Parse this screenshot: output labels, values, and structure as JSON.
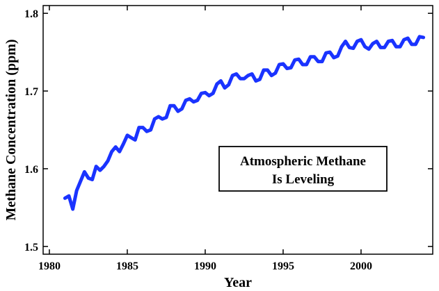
{
  "chart_data": {
    "type": "line",
    "title": "",
    "xlabel": "Year",
    "ylabel": "Methane Concentration (ppm)",
    "xlim": [
      1979.6,
      2004.6
    ],
    "ylim": [
      1.49,
      1.81
    ],
    "x_ticks": [
      1980,
      1985,
      1990,
      1995,
      2000
    ],
    "y_ticks": [
      1.5,
      1.6,
      1.7,
      1.8
    ],
    "x_tick_labels": [
      "1980",
      "1985",
      "1990",
      "1995",
      "2000"
    ],
    "y_tick_labels": [
      "1.5",
      "1.6",
      "1.7",
      "1.8"
    ],
    "grid": false,
    "line_color": "#1a33ff",
    "annotation": {
      "lines": [
        "Atmospheric Methane",
        "Is Leveling"
      ],
      "placement": "lower-right"
    },
    "series": [
      {
        "name": "Atmospheric methane",
        "x": [
          1981.0,
          1981.25,
          1981.5,
          1981.75,
          1982.0,
          1982.25,
          1982.5,
          1982.75,
          1983.0,
          1983.25,
          1983.5,
          1983.75,
          1984.0,
          1984.25,
          1984.5,
          1984.75,
          1985.0,
          1985.25,
          1985.5,
          1985.75,
          1986.0,
          1986.25,
          1986.5,
          1986.75,
          1987.0,
          1987.25,
          1987.5,
          1987.75,
          1988.0,
          1988.25,
          1988.5,
          1988.75,
          1989.0,
          1989.25,
          1989.5,
          1989.75,
          1990.0,
          1990.25,
          1990.5,
          1990.75,
          1991.0,
          1991.25,
          1991.5,
          1991.75,
          1992.0,
          1992.25,
          1992.5,
          1992.75,
          1993.0,
          1993.25,
          1993.5,
          1993.75,
          1994.0,
          1994.25,
          1994.5,
          1994.75,
          1995.0,
          1995.25,
          1995.5,
          1995.75,
          1996.0,
          1996.25,
          1996.5,
          1996.75,
          1997.0,
          1997.25,
          1997.5,
          1997.75,
          1998.0,
          1998.25,
          1998.5,
          1998.75,
          1999.0,
          1999.25,
          1999.5,
          1999.75,
          2000.0,
          2000.25,
          2000.5,
          2000.75,
          2001.0,
          2001.25,
          2001.5,
          2001.75,
          2002.0,
          2002.25,
          2002.5,
          2002.75,
          2003.0,
          2003.25,
          2003.5,
          2003.75,
          2004.0
        ],
        "values": [
          1.562,
          1.565,
          1.548,
          1.572,
          1.584,
          1.596,
          1.588,
          1.586,
          1.603,
          1.598,
          1.603,
          1.61,
          1.622,
          1.628,
          1.622,
          1.632,
          1.643,
          1.64,
          1.637,
          1.653,
          1.653,
          1.648,
          1.65,
          1.664,
          1.667,
          1.664,
          1.666,
          1.681,
          1.681,
          1.674,
          1.677,
          1.688,
          1.69,
          1.686,
          1.688,
          1.697,
          1.698,
          1.694,
          1.697,
          1.709,
          1.713,
          1.704,
          1.708,
          1.72,
          1.722,
          1.716,
          1.716,
          1.72,
          1.722,
          1.713,
          1.715,
          1.727,
          1.727,
          1.72,
          1.723,
          1.734,
          1.735,
          1.729,
          1.73,
          1.74,
          1.741,
          1.734,
          1.734,
          1.744,
          1.744,
          1.738,
          1.738,
          1.749,
          1.75,
          1.743,
          1.745,
          1.757,
          1.764,
          1.756,
          1.755,
          1.764,
          1.766,
          1.757,
          1.754,
          1.761,
          1.764,
          1.756,
          1.756,
          1.764,
          1.765,
          1.757,
          1.757,
          1.766,
          1.768,
          1.76,
          1.76,
          1.77,
          1.769
        ]
      }
    ]
  }
}
